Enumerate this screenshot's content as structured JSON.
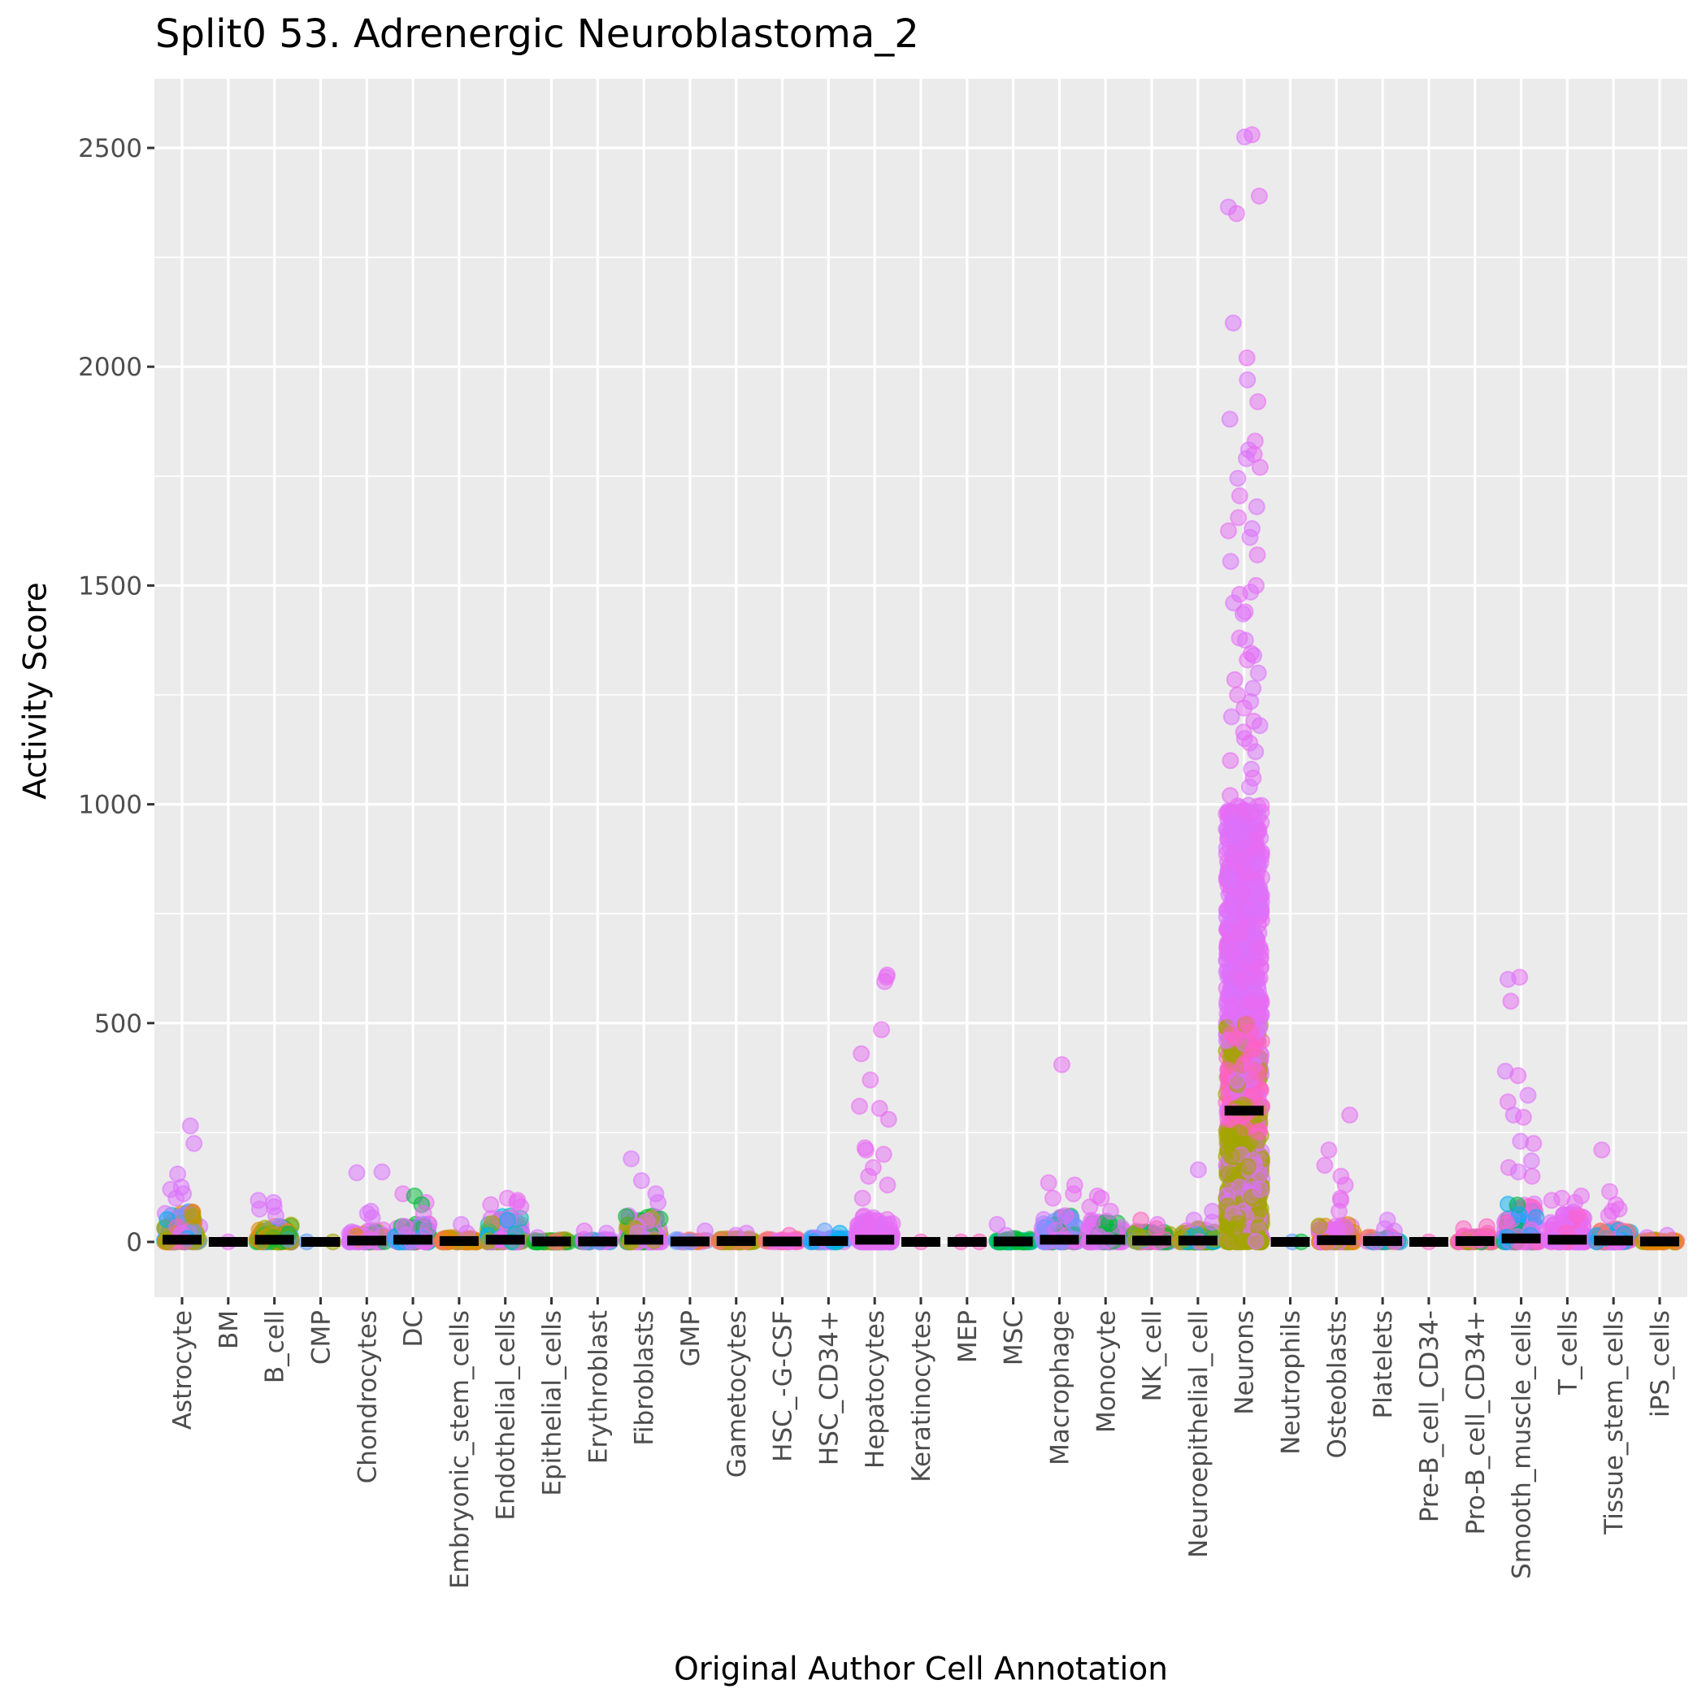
{
  "chart_data": {
    "type": "scatter",
    "subtype": "jitter-strip with median crossbars",
    "title": "Split0 53. Adrenergic Neuroblastoma_2",
    "xlabel": "Original Author Cell Annotation",
    "ylabel": "Activity Score",
    "ylim": [
      -130,
      2660
    ],
    "yticks": [
      0,
      500,
      1000,
      1500,
      2000,
      2500
    ],
    "grid": true,
    "legend": "none",
    "colors": {
      "panel_bg": "#EBEBEB",
      "grid": "#FFFFFF",
      "tick_text": "#4D4D4D",
      "median_bar": "#000000"
    },
    "palette": {
      "red": "#F8766D",
      "orange": "#E58700",
      "olive": "#A3A500",
      "green": "#00BA38",
      "teal": "#00C0AF",
      "cyan": "#00B0F6",
      "blue": "#619CFF",
      "purple": "#DB72FB",
      "violet": "#E76BF3",
      "pink": "#FF61C3"
    },
    "categories": [
      {
        "name": "Astrocyte",
        "n": 140,
        "typical_max": 70,
        "median": 5,
        "colors": [
          "olive",
          "olive",
          "olive",
          "purple",
          "cyan",
          "blue",
          "orange",
          "pink"
        ],
        "outliers": [
          265,
          225,
          155,
          125,
          120,
          110,
          100
        ]
      },
      {
        "name": "BM",
        "n": 1,
        "typical_max": 0,
        "median": 0,
        "colors": [
          "violet"
        ],
        "outliers": []
      },
      {
        "name": "B_cell",
        "n": 90,
        "typical_max": 40,
        "median": 5,
        "colors": [
          "green",
          "green",
          "green",
          "purple",
          "blue",
          "orange",
          "olive"
        ],
        "outliers": [
          95,
          90,
          80,
          75,
          60
        ]
      },
      {
        "name": "CMP",
        "n": 2,
        "typical_max": 2,
        "median": 0,
        "colors": [
          "olive",
          "blue"
        ],
        "outliers": []
      },
      {
        "name": "Chondrocytes",
        "n": 80,
        "typical_max": 30,
        "median": 3,
        "colors": [
          "purple",
          "purple",
          "violet",
          "green",
          "orange"
        ],
        "outliers": [
          160,
          158,
          70,
          65,
          55
        ]
      },
      {
        "name": "DC",
        "n": 90,
        "typical_max": 45,
        "median": 5,
        "colors": [
          "violet",
          "green",
          "cyan",
          "purple",
          "pink"
        ],
        "outliers": [
          110,
          105,
          90,
          85,
          65
        ]
      },
      {
        "name": "Embryonic_stem_cells",
        "n": 60,
        "typical_max": 10,
        "median": 2,
        "colors": [
          "orange",
          "olive",
          "red",
          "orange"
        ],
        "outliers": [
          40,
          20
        ]
      },
      {
        "name": "Endothelial_cells",
        "n": 110,
        "typical_max": 60,
        "median": 5,
        "colors": [
          "violet",
          "violet",
          "teal",
          "cyan",
          "olive"
        ],
        "outliers": [
          100,
          95,
          90,
          85,
          80
        ]
      },
      {
        "name": "Epithelial_cells",
        "n": 60,
        "typical_max": 5,
        "median": 1,
        "colors": [
          "green",
          "green",
          "olive",
          "red"
        ],
        "outliers": [
          10
        ]
      },
      {
        "name": "Erythroblast",
        "n": 30,
        "typical_max": 8,
        "median": 1,
        "colors": [
          "violet",
          "purple",
          "green",
          "blue"
        ],
        "outliers": [
          25,
          20
        ]
      },
      {
        "name": "Fibroblasts",
        "n": 110,
        "typical_max": 60,
        "median": 5,
        "colors": [
          "purple",
          "purple",
          "violet",
          "green",
          "olive"
        ],
        "outliers": [
          190,
          140,
          110,
          90
        ]
      },
      {
        "name": "GMP",
        "n": 20,
        "typical_max": 5,
        "median": 1,
        "colors": [
          "orange",
          "red",
          "blue",
          "purple"
        ],
        "outliers": [
          25
        ]
      },
      {
        "name": "Gametocytes",
        "n": 50,
        "typical_max": 8,
        "median": 2,
        "colors": [
          "olive",
          "olive",
          "olive",
          "red"
        ],
        "outliers": [
          20,
          15
        ]
      },
      {
        "name": "HSC_-G-CSF",
        "n": 30,
        "typical_max": 8,
        "median": 1,
        "colors": [
          "pink",
          "red",
          "violet"
        ],
        "outliers": [
          15
        ]
      },
      {
        "name": "HSC_CD34+",
        "n": 40,
        "typical_max": 10,
        "median": 2,
        "colors": [
          "blue",
          "cyan",
          "teal",
          "purple"
        ],
        "outliers": [
          25,
          20
        ]
      },
      {
        "name": "Hepatocytes",
        "n": 160,
        "typical_max": 60,
        "median": 5,
        "colors": [
          "violet",
          "violet",
          "violet",
          "purple"
        ],
        "outliers": [
          610,
          605,
          595,
          485,
          430,
          370,
          310,
          305,
          280,
          215,
          210,
          200,
          170,
          150,
          130,
          100
        ]
      },
      {
        "name": "Keratinocytes",
        "n": 1,
        "typical_max": 0,
        "median": 0,
        "colors": [
          "pink"
        ],
        "outliers": []
      },
      {
        "name": "MEP",
        "n": 2,
        "typical_max": 0,
        "median": 0,
        "colors": [
          "pink",
          "red"
        ],
        "outliers": []
      },
      {
        "name": "MSC",
        "n": 50,
        "typical_max": 8,
        "median": 1,
        "colors": [
          "green",
          "green",
          "green",
          "teal"
        ],
        "outliers": [
          40,
          15
        ]
      },
      {
        "name": "Macrophage",
        "n": 100,
        "typical_max": 60,
        "median": 5,
        "colors": [
          "violet",
          "violet",
          "purple",
          "green",
          "blue"
        ],
        "outliers": [
          405,
          135,
          130,
          110,
          100,
          60
        ]
      },
      {
        "name": "Monocyte",
        "n": 90,
        "typical_max": 50,
        "median": 5,
        "colors": [
          "violet",
          "violet",
          "purple",
          "green"
        ],
        "outliers": [
          105,
          100,
          80,
          70,
          45
        ]
      },
      {
        "name": "NK_cell",
        "n": 70,
        "typical_max": 25,
        "median": 3,
        "colors": [
          "pink",
          "violet",
          "blue",
          "green",
          "olive"
        ],
        "outliers": [
          50,
          40,
          30
        ]
      },
      {
        "name": "Neuroepithelial_cell",
        "n": 110,
        "typical_max": 30,
        "median": 3,
        "colors": [
          "olive",
          "olive",
          "olive",
          "cyan",
          "green",
          "violet"
        ],
        "outliers": [
          165,
          70,
          50,
          45
        ]
      },
      {
        "name": "Neurons",
        "n": 1400,
        "typical_max": 1000,
        "median": 300,
        "colors": [
          "violet",
          "purple",
          "pink",
          "olive"
        ],
        "outliers": [
          2530,
          2525,
          2390,
          2365,
          2350,
          2100,
          2020,
          1970,
          1920,
          1880,
          1830,
          1810,
          1800,
          1790,
          1770,
          1745,
          1705,
          1680,
          1655,
          1630,
          1625,
          1610,
          1570,
          1555,
          1500,
          1485,
          1480,
          1460,
          1440,
          1435,
          1380,
          1375,
          1345,
          1340,
          1330,
          1300,
          1285,
          1265,
          1250,
          1235,
          1220,
          1200,
          1190,
          1180,
          1165,
          1150,
          1140,
          1120,
          1100,
          1080,
          1060,
          1040,
          1020
        ]
      },
      {
        "name": "Neutrophils",
        "n": 2,
        "typical_max": 0,
        "median": 0,
        "colors": [
          "blue",
          "green"
        ],
        "outliers": []
      },
      {
        "name": "Osteoblasts",
        "n": 100,
        "typical_max": 40,
        "median": 4,
        "colors": [
          "violet",
          "violet",
          "purple",
          "orange",
          "olive"
        ],
        "outliers": [
          290,
          210,
          175,
          150,
          130,
          100,
          95,
          70
        ]
      },
      {
        "name": "Platelets",
        "n": 40,
        "typical_max": 15,
        "median": 2,
        "colors": [
          "green",
          "cyan",
          "red",
          "violet"
        ],
        "outliers": [
          50,
          30,
          25
        ]
      },
      {
        "name": "Pre-B_cell_CD34-",
        "n": 1,
        "typical_max": 0,
        "median": 0,
        "colors": [
          "pink"
        ],
        "outliers": []
      },
      {
        "name": "Pro-B_cell_CD34+",
        "n": 60,
        "typical_max": 15,
        "median": 2,
        "colors": [
          "pink",
          "pink",
          "pink",
          "green",
          "olive"
        ],
        "outliers": [
          35,
          30,
          20
        ]
      },
      {
        "name": "Smooth_muscle_cells",
        "n": 150,
        "typical_max": 90,
        "median": 8,
        "colors": [
          "violet",
          "purple",
          "pink",
          "cyan",
          "green"
        ],
        "outliers": [
          605,
          600,
          550,
          390,
          380,
          335,
          320,
          290,
          285,
          230,
          225,
          185,
          170,
          160,
          150
        ]
      },
      {
        "name": "T_cells",
        "n": 110,
        "typical_max": 70,
        "median": 5,
        "colors": [
          "violet",
          "violet",
          "purple",
          "pink"
        ],
        "outliers": [
          105,
          100,
          95,
          90
        ]
      },
      {
        "name": "Tissue_stem_cells",
        "n": 90,
        "typical_max": 30,
        "median": 3,
        "colors": [
          "violet",
          "violet",
          "pink",
          "cyan",
          "red"
        ],
        "outliers": [
          210,
          115,
          85,
          75,
          70,
          60
        ]
      },
      {
        "name": "iPS_cells",
        "n": 40,
        "typical_max": 5,
        "median": 1,
        "colors": [
          "orange",
          "orange",
          "olive",
          "red"
        ],
        "outliers": [
          15,
          10
        ]
      }
    ]
  }
}
